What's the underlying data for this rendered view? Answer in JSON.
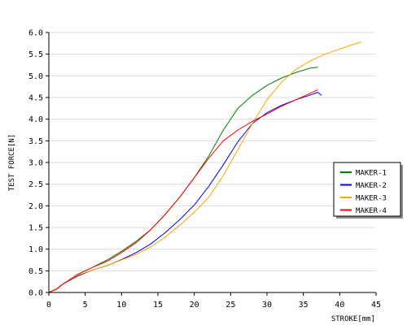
{
  "chart_data": {
    "type": "line",
    "xlabel": "STROKE[mm]",
    "ylabel": "TEST FORCE[N]",
    "xlim": [
      0,
      45
    ],
    "ylim": [
      0,
      6
    ],
    "xticks": [
      0,
      5,
      10,
      15,
      20,
      25,
      30,
      35,
      40,
      45
    ],
    "yticks": [
      0.0,
      0.5,
      1.0,
      1.5,
      2.0,
      2.5,
      3.0,
      3.5,
      4.0,
      4.5,
      5.0,
      5.5,
      6.0
    ],
    "grid": "horizontal",
    "legend_position": "right",
    "series": [
      {
        "name": "MAKER-1",
        "color": "#008000",
        "x": [
          0,
          1,
          2,
          4,
          6,
          8,
          10,
          12,
          14,
          16,
          18,
          20,
          22,
          24,
          26,
          28,
          30,
          32,
          34,
          36,
          37
        ],
        "y": [
          0,
          0.08,
          0.2,
          0.42,
          0.58,
          0.75,
          0.95,
          1.18,
          1.45,
          1.8,
          2.2,
          2.65,
          3.15,
          3.75,
          4.25,
          4.55,
          4.78,
          4.95,
          5.08,
          5.18,
          5.2
        ]
      },
      {
        "name": "MAKER-2",
        "color": "#0000ff",
        "x": [
          0,
          1,
          2,
          4,
          6,
          8,
          10,
          12,
          14,
          16,
          18,
          20,
          22,
          24,
          26,
          28,
          30,
          32,
          34,
          36,
          37,
          37.5
        ],
        "y": [
          0,
          0.08,
          0.2,
          0.38,
          0.52,
          0.62,
          0.76,
          0.92,
          1.12,
          1.38,
          1.68,
          2.02,
          2.45,
          2.95,
          3.48,
          3.9,
          4.15,
          4.32,
          4.45,
          4.56,
          4.62,
          4.55
        ]
      },
      {
        "name": "MAKER-3",
        "color": "#ffa500",
        "x": [
          0,
          1,
          2,
          4,
          6,
          8,
          10,
          12,
          14,
          16,
          18,
          20,
          22,
          24,
          26,
          28,
          30,
          32,
          34,
          36,
          38,
          40,
          42,
          43
        ],
        "y": [
          0,
          0.08,
          0.2,
          0.4,
          0.52,
          0.62,
          0.75,
          0.88,
          1.05,
          1.28,
          1.55,
          1.85,
          2.2,
          2.7,
          3.3,
          3.9,
          4.45,
          4.85,
          5.15,
          5.35,
          5.5,
          5.62,
          5.73,
          5.78
        ]
      },
      {
        "name": "MAKER-4",
        "color": "#ff0000",
        "x": [
          0,
          1,
          2,
          4,
          6,
          8,
          10,
          12,
          14,
          16,
          18,
          20,
          22,
          24,
          26,
          28,
          30,
          32,
          34,
          36,
          37
        ],
        "y": [
          0,
          0.07,
          0.2,
          0.42,
          0.58,
          0.72,
          0.92,
          1.15,
          1.45,
          1.8,
          2.2,
          2.65,
          3.1,
          3.5,
          3.75,
          3.95,
          4.12,
          4.3,
          4.45,
          4.6,
          4.68
        ]
      }
    ]
  }
}
